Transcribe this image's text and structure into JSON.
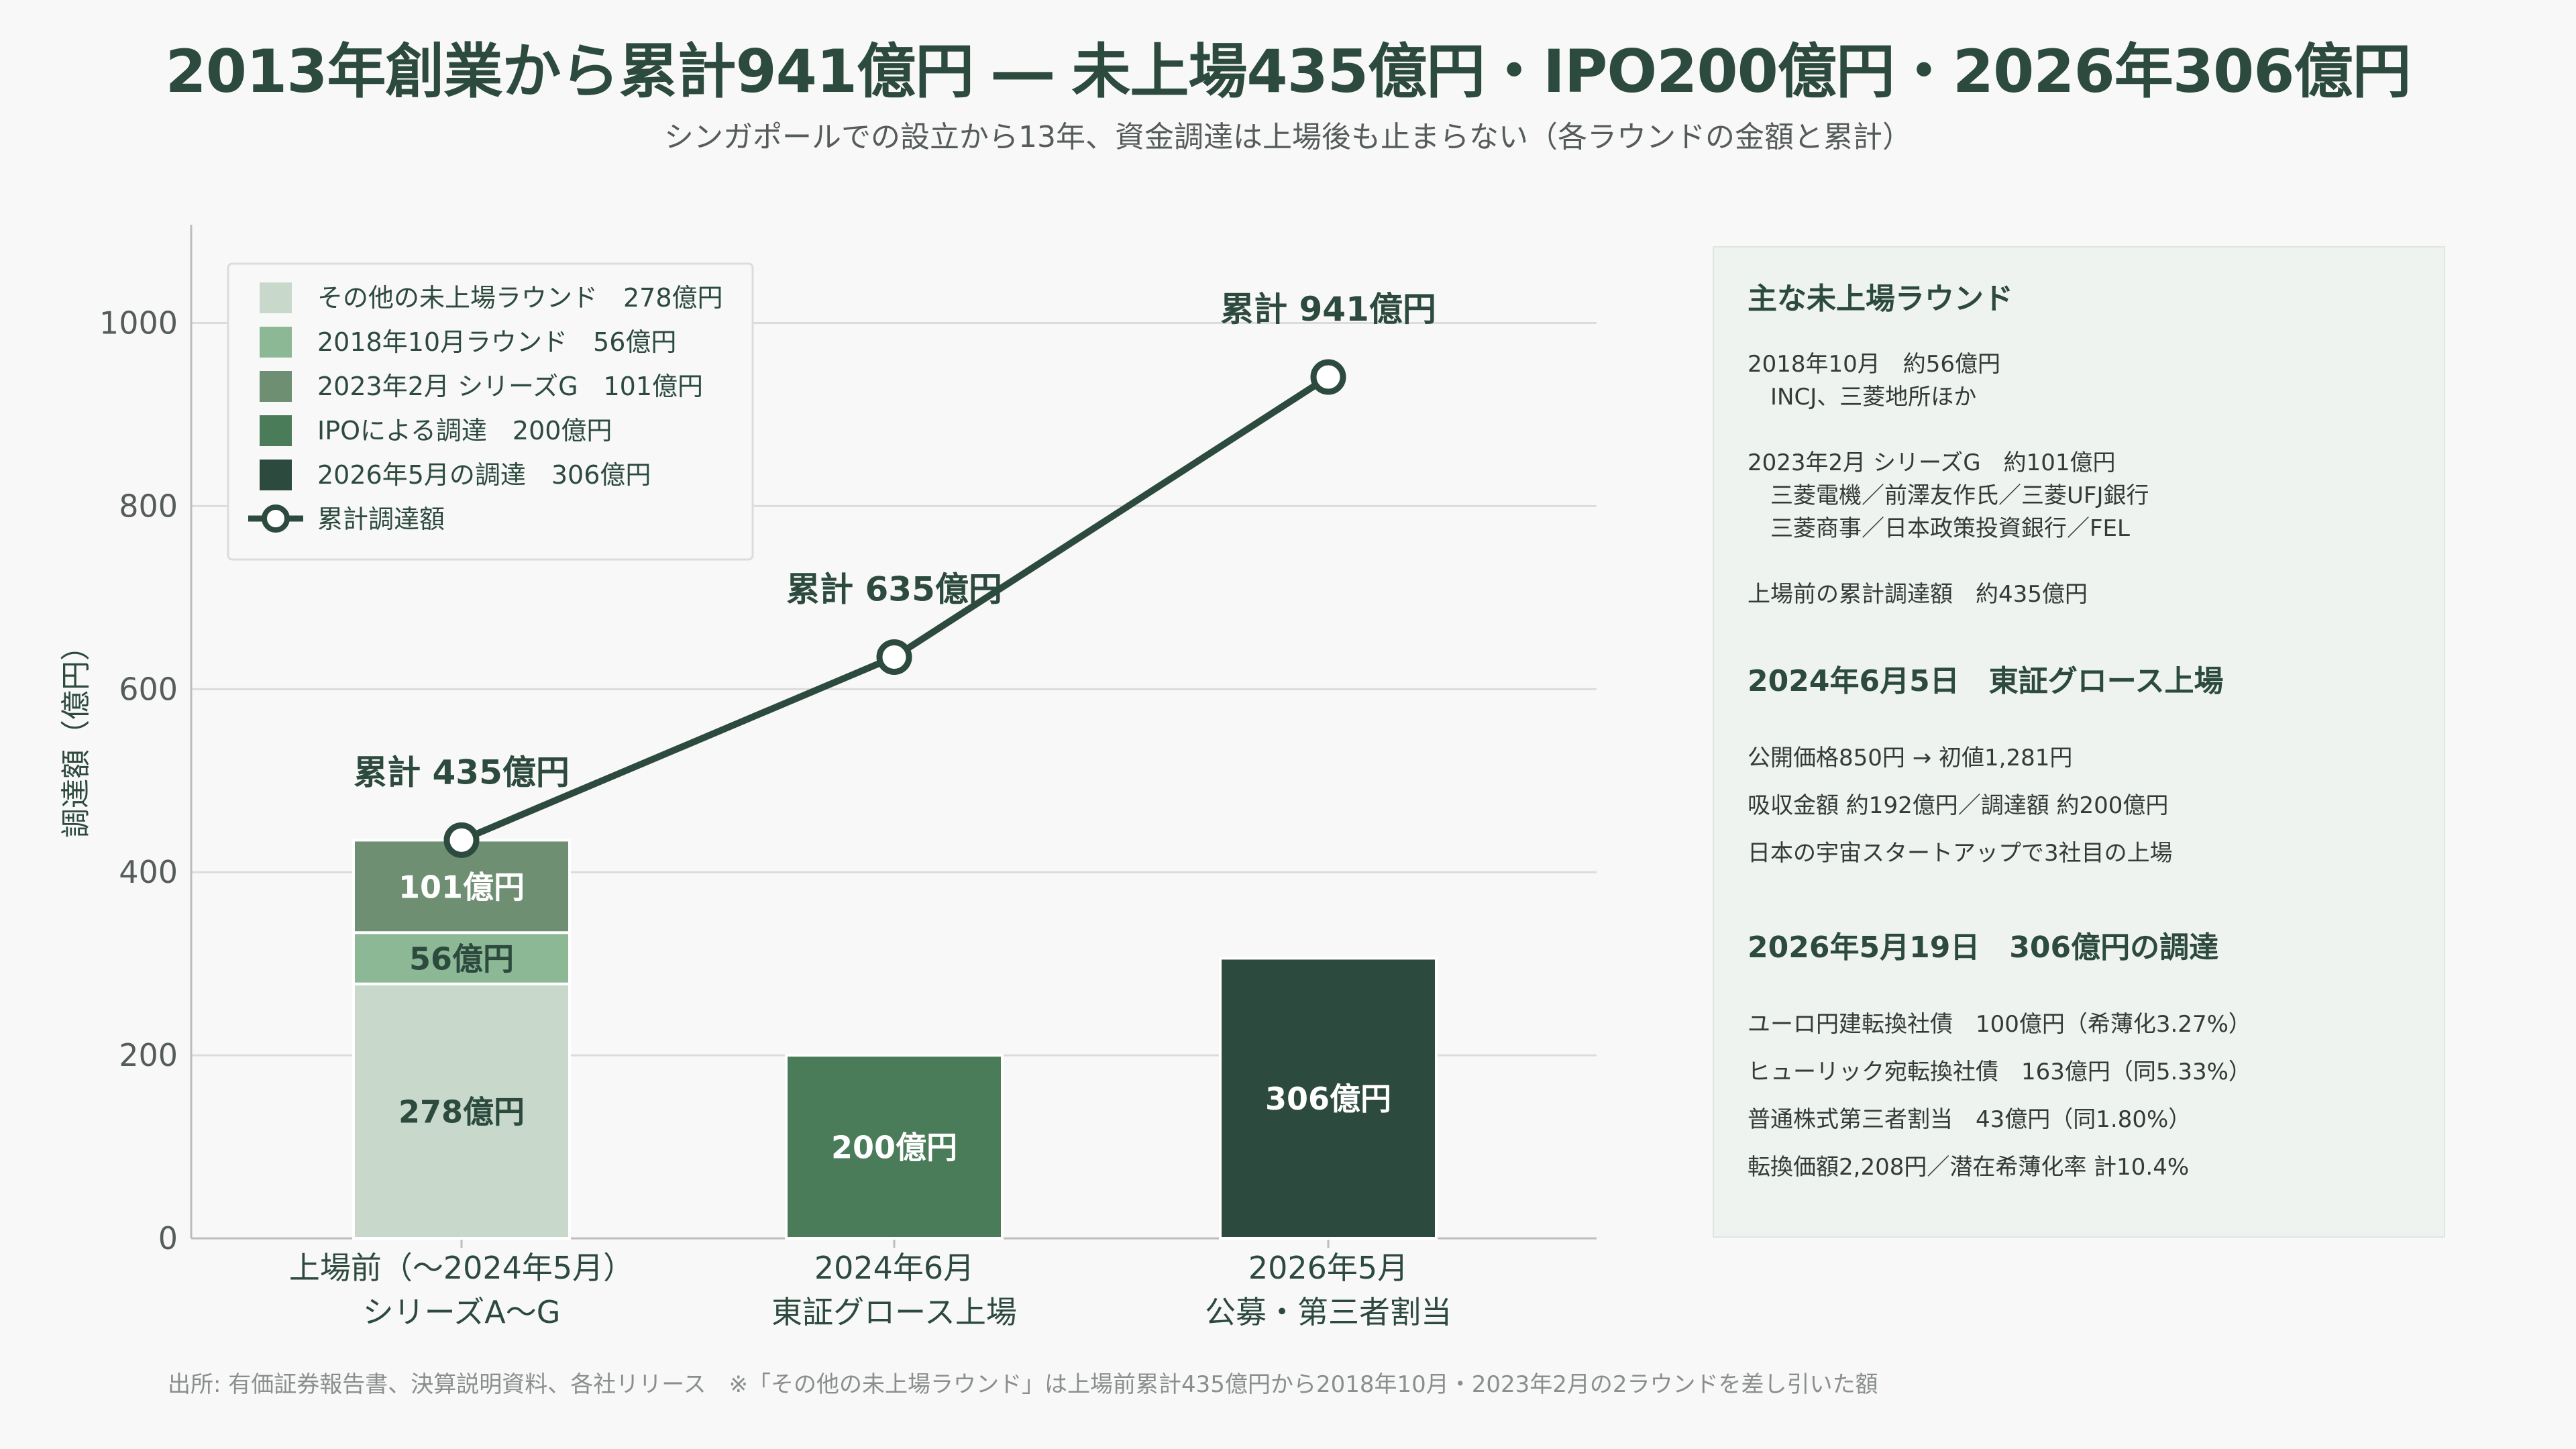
{
  "title": "2013年創業から累計941億円 ― 未上場435億円・IPO200億円・2026年306億円",
  "subtitle": "シンガポールでの設立から13年、資金調達は上場後も止まらない（各ラウンドの金額と累計）",
  "colors": {
    "other_rounds": "#c8d9cc",
    "round_2018": "#8cb896",
    "round_2023": "#6e8f72",
    "ipo": "#4a7c59",
    "round_2026": "#2d4a3e",
    "cumulative_line": "#2d4a3e"
  },
  "chart_data": {
    "type": "bar",
    "ylabel": "調達額（億円）",
    "ylim": [
      0,
      1100
    ],
    "yticks": [
      0,
      200,
      400,
      600,
      800,
      1000
    ],
    "grid": true,
    "legend_position": "top-left",
    "categories": [
      [
        "上場前（〜2024年5月）",
        "シリーズA〜G"
      ],
      [
        "2024年6月",
        "東証グロース上場"
      ],
      [
        "2026年5月",
        "公募・第三者割当"
      ]
    ],
    "series": [
      {
        "name": "その他の未上場ラウンド　278億円",
        "color_key": "other_rounds",
        "values": [
          278,
          0,
          0
        ],
        "labels": [
          "278億円",
          "",
          ""
        ],
        "label_color": "#2d4a3e"
      },
      {
        "name": "2018年10月ラウンド　56億円",
        "color_key": "round_2018",
        "values": [
          56,
          0,
          0
        ],
        "labels": [
          "56億円",
          "",
          ""
        ],
        "label_color": "#2d4a3e"
      },
      {
        "name": "2023年2月 シリーズG　101億円",
        "color_key": "round_2023",
        "values": [
          101,
          0,
          0
        ],
        "labels": [
          "101億円",
          "",
          ""
        ],
        "label_color": "#ffffff"
      },
      {
        "name": "IPOによる調達　200億円",
        "color_key": "ipo",
        "values": [
          0,
          200,
          0
        ],
        "labels": [
          "",
          "200億円",
          ""
        ],
        "label_color": "#ffffff"
      },
      {
        "name": "2026年5月の調達　306億円",
        "color_key": "round_2026",
        "values": [
          0,
          0,
          306
        ],
        "labels": [
          "",
          "",
          "306億円"
        ],
        "label_color": "#ffffff"
      }
    ],
    "line": {
      "name": "累計調達額",
      "color_key": "cumulative_line",
      "values": [
        435,
        635,
        941
      ],
      "labels": [
        "累計 435億円",
        "累計 635億円",
        "累計 941億円"
      ]
    }
  },
  "side_panel": {
    "section1_title": "主な未上場ラウンド",
    "section1_lines": [
      "2018年10月　約56億円",
      "　INCJ、三菱地所ほか",
      "",
      "2023年2月 シリーズG　約101億円",
      "　三菱電機／前澤友作氏／三菱UFJ銀行",
      "　三菱商事／日本政策投資銀行／FEL",
      "",
      "上場前の累計調達額　約435億円"
    ],
    "section2_title": "2024年6月5日　東証グロース上場",
    "section2_lines": [
      "公開価格850円 → 初値1,281円",
      "吸収金額 約192億円／調達額 約200億円",
      "日本の宇宙スタートアップで3社目の上場"
    ],
    "section3_title": "2026年5月19日　306億円の調達",
    "section3_lines": [
      "ユーロ円建転換社債　100億円（希薄化3.27%）",
      "ヒューリック宛転換社債　163億円（同5.33%）",
      "普通株式第三者割当　43億円（同1.80%）",
      "転換価額2,208円／潜在希薄化率 計10.4%"
    ]
  },
  "source": "出所: 有価証券報告書、決算説明資料、各社リリース　※「その他の未上場ラウンド」は上場前累計435億円から2018年10月・2023年2月の2ラウンドを差し引いた額"
}
